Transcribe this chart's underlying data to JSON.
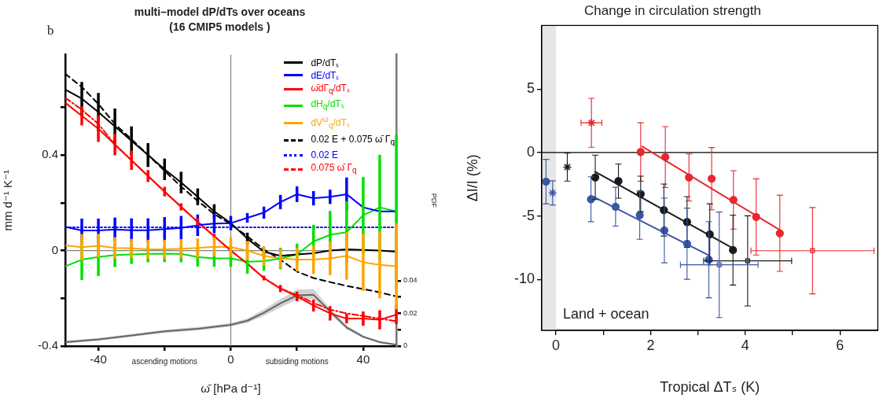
{
  "chart_data": [
    {
      "type": "line",
      "title": "multi–model dP/dTs over oceans",
      "subtitle": "(16 CMIP5 models )",
      "xlabel": "ω̄ [hPa d⁻¹]",
      "ylabel": "mm d⁻¹ K⁻¹",
      "y2label": "PDF",
      "annotations": [
        "b",
        "ascending motions",
        "subsiding motions"
      ],
      "x": [
        -50,
        -45,
        -40,
        -35,
        -30,
        -25,
        -20,
        -15,
        -10,
        -5,
        0,
        5,
        10,
        15,
        20,
        25,
        30,
        35,
        40,
        45,
        50
      ],
      "xlim": [
        -50,
        50
      ],
      "xticks": [
        -40,
        {
          "value": -20,
          "label": null
        },
        0,
        {
          "value": 20,
          "label": null
        },
        40
      ],
      "ylim": [
        -0.4,
        0.82
      ],
      "yticks": [
        -0.4,
        {
          "value": -0.2,
          "label": null
        },
        0,
        {
          "value": 0.2,
          "label": null
        },
        0.4,
        {
          "value": 0.6,
          "label": null
        }
      ],
      "y2lim": [
        0,
        0.178
      ],
      "y2ticks": [
        0,
        {
          "value": 0.01,
          "label": null
        },
        0.02,
        {
          "value": 0.03,
          "label": null
        },
        0.04
      ],
      "legend": "top right",
      "marker": "none",
      "ref_lines": [
        {
          "axis": "x",
          "value": 0,
          "color": "#808080"
        },
        {
          "axis": "y",
          "value": 0,
          "color": "#808080"
        }
      ],
      "series": [
        {
          "name": "dP/dTₛ",
          "color": "#000000",
          "line_style": "solid",
          "values": [
            0.674,
            0.636,
            0.58,
            0.52,
            0.46,
            0.4,
            0.34,
            0.285,
            0.225,
            0.164,
            0.115,
            0.05,
            -0.005,
            -0.022,
            -0.016,
            -0.011,
            0,
            0.005,
            0.003,
            0,
            -0.005
          ],
          "errors": [
            null,
            0.07,
            0.08,
            0.075,
            0.06,
            0.05,
            0.045,
            0.045,
            0.035,
            0.03,
            null,
            0.025,
            0.01,
            null,
            null,
            null,
            null,
            null,
            null,
            null,
            null
          ]
        },
        {
          "name": "dE/dTₛ",
          "color": "#0000ff",
          "line_style": "solid",
          "values": [
            0.099,
            0.084,
            0.084,
            0.088,
            0.085,
            0.085,
            0.09,
            0.095,
            0.106,
            0.113,
            0.115,
            0.137,
            0.159,
            0.203,
            0.236,
            0.219,
            0.225,
            0.236,
            0.181,
            0.164,
            0.164
          ],
          "errors": [
            null,
            0.05,
            0.05,
            0.05,
            0.05,
            0.05,
            0.05,
            0.05,
            0.045,
            0.04,
            0.03,
            0.02,
            0.025,
            0.03,
            0.033,
            0.03,
            0.03,
            0.07,
            null,
            null,
            null
          ]
        },
        {
          "name": "ω̄dΓ$_{q}$/dTₛ",
          "color": "#ff0000",
          "line_style": "solid",
          "values": [
            0.619,
            0.564,
            0.51,
            0.444,
            0.378,
            0.312,
            0.247,
            0.183,
            0.12,
            0.06,
            0,
            -0.055,
            -0.115,
            -0.159,
            -0.192,
            -0.23,
            -0.263,
            -0.285,
            -0.285,
            -0.29,
            -0.268
          ],
          "errors": [
            null,
            0.04,
            0.055,
            0.045,
            0.04,
            0.025,
            0.02,
            0.015,
            0.015,
            0.01,
            0.01,
            null,
            0.01,
            0.015,
            0.02,
            0.025,
            0.03,
            0.02,
            0.03,
            0.04,
            0.04
          ]
        },
        {
          "name": "dH$_{q}$/dTₛ",
          "color": "#00e000",
          "line_style": "solid",
          "values": [
            -0.066,
            -0.038,
            -0.027,
            -0.019,
            -0.016,
            -0.014,
            -0.013,
            -0.014,
            -0.027,
            -0.033,
            -0.033,
            -0.047,
            -0.044,
            -0.033,
            -0.016,
            0.038,
            0.066,
            0.077,
            0.148,
            0.181,
            0.164
          ],
          "errors": [
            null,
            0.085,
            0.08,
            0.05,
            0.04,
            0.035,
            0.035,
            0.035,
            0.04,
            0.035,
            0.035,
            0.05,
            0.04,
            0.045,
            0.045,
            0.07,
            0.1,
            0.13,
            0.16,
            0.22,
            0.32
          ]
        },
        {
          "name": "dV$^{ω}$$_{q}$/dTₛ",
          "color": "#ffa500",
          "line_style": "solid",
          "values": [
            0.022,
            0.014,
            0.02,
            0.011,
            0.009,
            0.005,
            0.005,
            0.008,
            0.011,
            0.016,
            0.014,
            0,
            -0.022,
            -0.033,
            -0.038,
            -0.038,
            -0.033,
            -0.022,
            -0.049,
            -0.06,
            -0.066
          ],
          "errors": [
            null,
            0.055,
            0.05,
            0.045,
            0.04,
            0.04,
            0.04,
            0.04,
            0.04,
            0.04,
            0.04,
            0.04,
            0.04,
            0.04,
            0.05,
            0.06,
            0.07,
            0.1,
            0.12,
            0.14,
            0.18
          ]
        },
        {
          "name": "0.02 E + 0.075 ω̄ Γ$_{q}$",
          "color": "#000000",
          "line_style": "dashed",
          "values": [
            0.74,
            0.685,
            0.614,
            0.53,
            0.466,
            0.4,
            0.334,
            0.268,
            0.208,
            0.153,
            0.11,
            0.06,
            0.005,
            -0.038,
            -0.088,
            -0.115,
            -0.132,
            -0.148,
            -0.161,
            -0.175,
            -0.192
          ]
        },
        {
          "name": "0.02 E",
          "color": "#0000ff",
          "line_style": "dotted",
          "values": [
            0.097,
            0.097,
            0.097,
            0.097,
            0.097,
            0.097,
            0.097,
            0.097,
            0.097,
            0.097,
            0.097,
            0.097,
            0.097,
            0.097,
            0.097,
            0.097,
            0.097,
            0.097,
            0.097,
            0.097,
            0.097
          ]
        },
        {
          "name": "0.075 ω̄ Γ$_{q}$",
          "color": "#ff0000",
          "line_style": "dashdot",
          "values": [
            0.64,
            0.59,
            0.53,
            0.444,
            0.378,
            0.312,
            0.247,
            0.183,
            0.12,
            0.06,
            0,
            -0.055,
            -0.115,
            -0.159,
            -0.186,
            -0.219,
            -0.247,
            -0.263,
            -0.274,
            -0.285,
            -0.296
          ]
        },
        {
          "color": "#666666",
          "line_style": "solid",
          "axis": "y2",
          "x": [
            -50,
            -40,
            -30,
            -20,
            -10,
            0,
            5,
            10,
            15,
            20,
            25,
            30,
            35,
            40,
            45,
            50
          ],
          "values": [
            0.0024,
            0.0041,
            0.0065,
            0.009,
            0.0106,
            0.013,
            0.0155,
            0.0204,
            0.0261,
            0.031,
            0.0313,
            0.0212,
            0.0114,
            0.0057,
            0.0024,
            0.0008
          ],
          "lower": [
            0.0016,
            0.0033,
            0.0057,
            0.008,
            0.0096,
            0.012,
            0.0142,
            0.0185,
            0.0235,
            0.0285,
            0.0288,
            0.0195,
            0.0102,
            0.0049,
            0.0018,
            0.0004
          ],
          "upper": [
            0.0032,
            0.0049,
            0.0073,
            0.01,
            0.0116,
            0.014,
            0.0168,
            0.0223,
            0.0287,
            0.0345,
            0.0348,
            0.0229,
            0.0126,
            0.0065,
            0.003,
            0.0012
          ]
        }
      ]
    },
    {
      "type": "scatter",
      "title": "Change in circulation strength",
      "xlabel": "Tropical ΔTₛ (K)",
      "ylabel": "ΔI/I (%)",
      "annotations": [
        "Land + ocean"
      ],
      "xlim": [
        -0.3,
        6.8
      ],
      "xticks": [
        0,
        {
          "value": 1,
          "label": null
        },
        2,
        {
          "value": 3,
          "label": null
        },
        4,
        {
          "value": 5,
          "label": null
        },
        6
      ],
      "ylim": [
        -14,
        10
      ],
      "yticks": [
        -10,
        -5,
        0,
        5
      ],
      "marker": "circle",
      "bands": [
        {
          "axis": "x",
          "from": -0.3,
          "to": 0,
          "color": "#e6e6e6"
        }
      ],
      "ref_lines": [
        {
          "axis": "y",
          "value": 0,
          "color": "#000000"
        }
      ],
      "series": [
        {
          "color": "#e8282e",
          "x": [
            1.79,
            2.31,
            2.81,
            3.29,
            3.75,
            4.23,
            4.73
          ],
          "values": [
            0.04,
            -0.36,
            -1.96,
            -2.06,
            -3.73,
            -5.07,
            -6.36
          ],
          "errors": [
            2.3,
            2.4,
            1.85,
            2.45,
            2.3,
            3.0,
            3.0
          ]
        },
        {
          "color": "#e8282e",
          "marker": "cross",
          "x": [
            0.75
          ],
          "values": [
            2.34
          ],
          "errors": [
            1.93
          ],
          "xerrors": [
            0.22
          ]
        },
        {
          "color": "#e8282e",
          "marker": "square",
          "x": [
            5.42
          ],
          "values": [
            -7.73
          ],
          "errors": [
            3.4
          ],
          "xerrors": [
            1.3
          ]
        },
        {
          "type": "line",
          "color": "#e8282e",
          "marker": "none",
          "x": [
            1.82,
            4.73
          ],
          "values": [
            0.48,
            -6.1
          ]
        },
        {
          "color": "#1a1a1a",
          "x": [
            0.83,
            1.32,
            1.79,
            2.28,
            2.77,
            3.25,
            3.74
          ],
          "values": [
            -1.96,
            -2.25,
            -3.26,
            -4.53,
            -5.47,
            -6.44,
            -7.68
          ],
          "errors": [
            1.75,
            1.35,
            1.4,
            2.05,
            2.0,
            2.4,
            2.75
          ]
        },
        {
          "color": "#1a1a1a",
          "marker": "cross",
          "x": [
            0.24
          ],
          "values": [
            -1.15
          ],
          "errors": [
            1.1
          ]
        },
        {
          "color": "#1a1a1a",
          "marker": "square",
          "x": [
            4.05
          ],
          "values": [
            -8.53
          ],
          "errors": [
            3.55
          ],
          "xerrors": [
            0.93
          ]
        },
        {
          "type": "line",
          "color": "#1a1a1a",
          "marker": "none",
          "x": [
            0.83,
            3.76
          ],
          "values": [
            -1.52,
            -7.58
          ]
        },
        {
          "color": "#3a55a4",
          "x": [
            0.74,
            1.26,
            1.77,
            2.29,
            2.77,
            3.23
          ],
          "values": [
            -3.68,
            -4.27,
            -4.93,
            -6.13,
            -7.18,
            -8.44
          ],
          "errors": [
            1.77,
            1.53,
            1.9,
            2.55,
            2.8,
            3.0
          ]
        },
        {
          "color": "#3a55a4",
          "x": [
            -0.21
          ],
          "values": [
            -2.29
          ],
          "errors": [
            1.75
          ]
        },
        {
          "color": "#3a55a4",
          "marker": "cross",
          "x": [
            -0.07
          ],
          "values": [
            -3.18
          ],
          "errors": [
            0.95
          ]
        },
        {
          "color": "#3a55a4",
          "marker": "square",
          "x": [
            3.45
          ],
          "values": [
            -8.84
          ],
          "errors": [
            4.15
          ],
          "xerrors": [
            0.82
          ]
        },
        {
          "type": "line",
          "color": "#3a55a4",
          "marker": "none",
          "x": [
            0.74,
            3.23
          ],
          "values": [
            -3.39,
            -8.1
          ]
        }
      ]
    }
  ]
}
